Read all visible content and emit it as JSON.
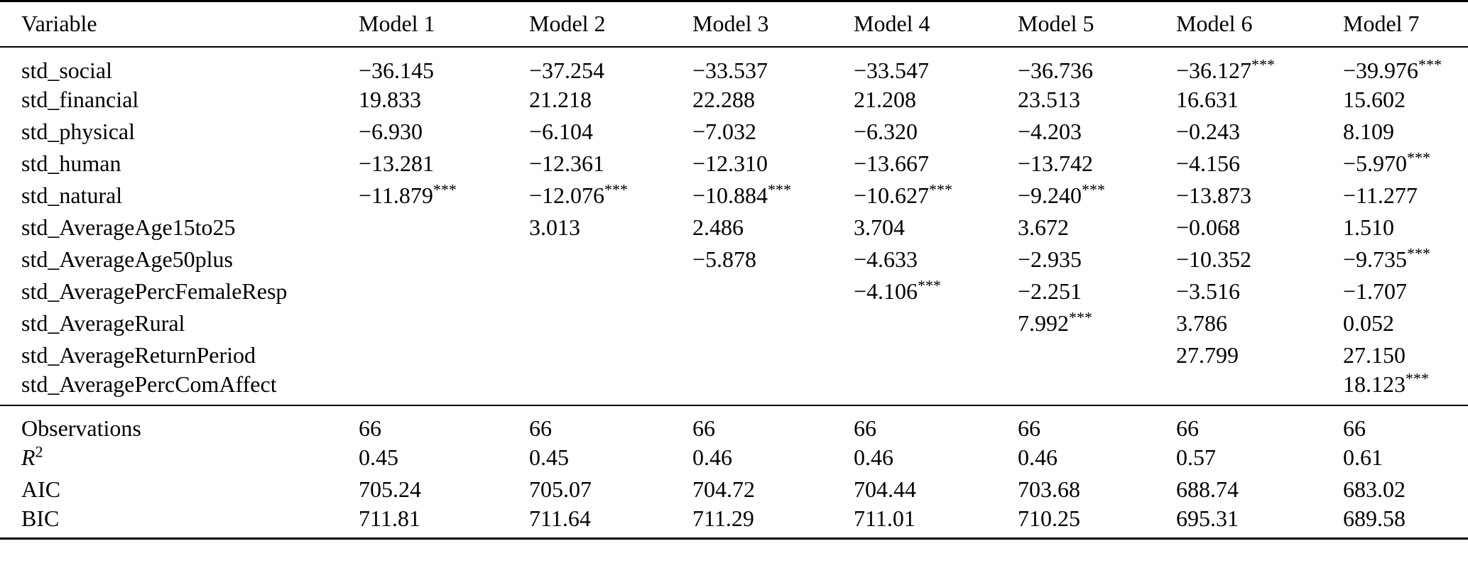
{
  "table": {
    "columns": [
      "Variable",
      "Model 1",
      "Model 2",
      "Model 3",
      "Model 4",
      "Model 5",
      "Model 6",
      "Model 7"
    ],
    "significance_marker": "***",
    "text_color": "#000000",
    "background_color": "#ffffff",
    "coefficient_rows": [
      {
        "variable": "std_social",
        "values": [
          "−36.145",
          "−37.254",
          "−33.537",
          "−33.547",
          "−36.736",
          "−36.127***",
          "−39.976***"
        ]
      },
      {
        "variable": "std_financial",
        "values": [
          "19.833",
          "21.218",
          "22.288",
          "21.208",
          "23.513",
          "16.631",
          "15.602"
        ]
      },
      {
        "variable": "std_physical",
        "values": [
          "−6.930",
          "−6.104",
          "−7.032",
          "−6.320",
          "−4.203",
          "−0.243",
          "8.109"
        ]
      },
      {
        "variable": "std_human",
        "values": [
          "−13.281",
          "−12.361",
          "−12.310",
          "−13.667",
          "−13.742",
          "−4.156",
          "−5.970***"
        ]
      },
      {
        "variable": "std_natural",
        "values": [
          "−11.879***",
          "−12.076***",
          "−10.884***",
          "−10.627***",
          "−9.240***",
          "−13.873",
          "−11.277"
        ]
      },
      {
        "variable": "std_AverageAge15to25",
        "values": [
          "",
          "3.013",
          "2.486",
          "3.704",
          "3.672",
          "−0.068",
          "1.510"
        ]
      },
      {
        "variable": "std_AverageAge50plus",
        "values": [
          "",
          "",
          "−5.878",
          "−4.633",
          "−2.935",
          "−10.352",
          "−9.735***"
        ]
      },
      {
        "variable": "std_AveragePercFemaleResp",
        "values": [
          "",
          "",
          "",
          "−4.106***",
          "−2.251",
          "−3.516",
          "−1.707"
        ]
      },
      {
        "variable": "std_AverageRural",
        "values": [
          "",
          "",
          "",
          "",
          "7.992***",
          "3.786",
          "0.052"
        ]
      },
      {
        "variable": "std_AverageReturnPeriod",
        "values": [
          "",
          "",
          "",
          "",
          "",
          "27.799",
          "27.150"
        ]
      },
      {
        "variable": "std_AveragePercComAffect",
        "values": [
          "",
          "",
          "",
          "",
          "",
          "",
          "18.123***"
        ]
      }
    ],
    "stats_rows": [
      {
        "label": "Observations",
        "label_sup": "",
        "label_italic": false,
        "values": [
          "66",
          "66",
          "66",
          "66",
          "66",
          "66",
          "66"
        ]
      },
      {
        "label": "R",
        "label_sup": "2",
        "label_italic": true,
        "values": [
          "0.45",
          "0.45",
          "0.46",
          "0.46",
          "0.46",
          "0.57",
          "0.61"
        ]
      },
      {
        "label": "AIC",
        "label_sup": "",
        "label_italic": false,
        "values": [
          "705.24",
          "705.07",
          "704.72",
          "704.44",
          "703.68",
          "688.74",
          "683.02"
        ]
      },
      {
        "label": "BIC",
        "label_sup": "",
        "label_italic": false,
        "values": [
          "711.81",
          "711.64",
          "711.29",
          "711.01",
          "710.25",
          "695.31",
          "689.58"
        ]
      }
    ]
  }
}
